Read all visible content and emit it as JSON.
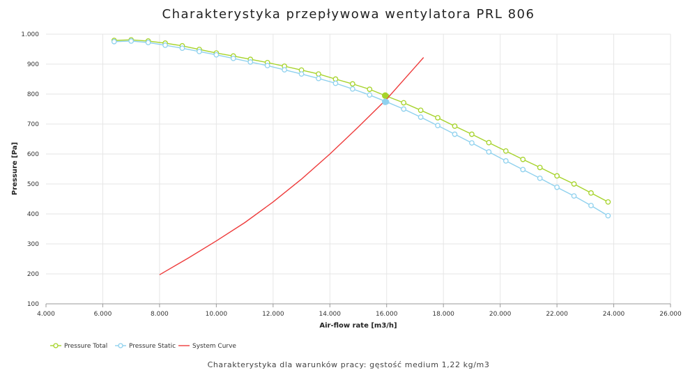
{
  "chart_data": {
    "type": "line",
    "title": "Charakterystyka przepływowa wentylatora PRL 806",
    "subtitle": "Charakterystyka dla warunków pracy: gęstość medium 1,22 kg/m3",
    "xlabel": "Air-flow rate [m3/h]",
    "ylabel": "Pressure [Pa]",
    "xlim": [
      4000,
      26000
    ],
    "ylim": [
      100,
      1000
    ],
    "x_ticks": [
      4000,
      6000,
      8000,
      10000,
      12000,
      14000,
      16000,
      18000,
      20000,
      22000,
      24000,
      26000
    ],
    "x_tick_labels": [
      "4.000",
      "6.000",
      "8.000",
      "10.000",
      "12.000",
      "14.000",
      "16.000",
      "18.000",
      "20.000",
      "22.000",
      "24.000",
      "26.000"
    ],
    "y_ticks": [
      100,
      200,
      300,
      400,
      500,
      600,
      700,
      800,
      900,
      1000
    ],
    "y_tick_labels": [
      "100",
      "200",
      "300",
      "400",
      "500",
      "600",
      "700",
      "800",
      "900",
      "1.000"
    ],
    "grid": true,
    "legend_position": "bottom-left",
    "series": [
      {
        "name": "Pressure Total",
        "color": "#a6d32a",
        "marker": "open-circle",
        "x": [
          6400,
          7000,
          7600,
          8200,
          8800,
          9400,
          10000,
          10600,
          11200,
          11800,
          12400,
          13000,
          13600,
          14200,
          14800,
          15400,
          16000,
          16600,
          17200,
          17800,
          18400,
          19000,
          19600,
          20200,
          20800,
          21400,
          22000,
          22600,
          23200,
          23800
        ],
        "y": [
          979,
          981,
          977,
          970,
          961,
          949,
          937,
          927,
          916,
          905,
          893,
          880,
          867,
          850,
          834,
          816,
          793,
          771,
          746,
          721,
          693,
          666,
          638,
          610,
          582,
          555,
          527,
          500,
          470,
          440
        ]
      },
      {
        "name": "Pressure Static",
        "color": "#8fd1ee",
        "marker": "open-circle",
        "x": [
          6400,
          7000,
          7600,
          8200,
          8800,
          9400,
          10000,
          10600,
          11200,
          11800,
          12400,
          13000,
          13600,
          14200,
          14800,
          15400,
          16000,
          16600,
          17200,
          17800,
          18400,
          19000,
          19600,
          20200,
          20800,
          21400,
          22000,
          22600,
          23200,
          23800
        ],
        "y": [
          975,
          977,
          972,
          963,
          953,
          942,
          931,
          919,
          907,
          895,
          881,
          867,
          852,
          836,
          817,
          797,
          774,
          750,
          723,
          695,
          666,
          637,
          607,
          577,
          548,
          519,
          489,
          460,
          428,
          394
        ]
      },
      {
        "name": "System Curve",
        "color": "#ee3b3b",
        "marker": "none",
        "x": [
          8000,
          9000,
          10000,
          11000,
          12000,
          13000,
          14000,
          15000,
          16000,
          17000,
          17300
        ],
        "y": [
          197,
          252,
          310,
          371,
          440,
          516,
          600,
          690,
          783,
          890,
          922
        ]
      }
    ],
    "operating_points": [
      {
        "series": "Pressure Total",
        "x": 15950,
        "y": 795
      },
      {
        "series": "Pressure Static",
        "x": 15950,
        "y": 774
      }
    ]
  }
}
